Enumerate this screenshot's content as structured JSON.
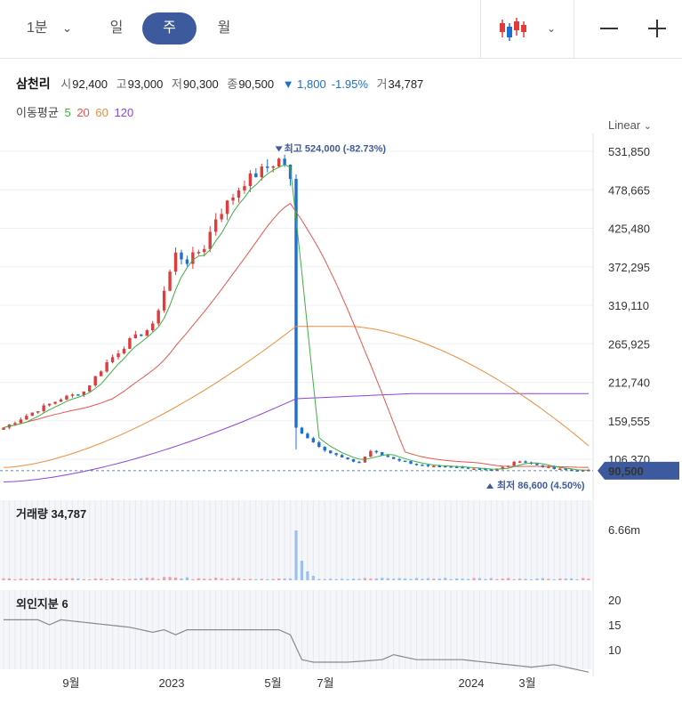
{
  "toolbar": {
    "period_label": "1분",
    "tabs": [
      "일",
      "주",
      "월"
    ],
    "active_tab": "주",
    "chart_style_icon": "candlestick-icon"
  },
  "quote": {
    "name": "삼천리",
    "open_label": "시",
    "open": "92,400",
    "high_label": "고",
    "high": "93,000",
    "low_label": "저",
    "low": "90,300",
    "close_label": "종",
    "close": "90,500",
    "change": "▼ 1,800",
    "change_pct": "-1.95%",
    "volume_label": "거",
    "volume": "34,787"
  },
  "moving_average": {
    "label": "이동평균",
    "periods": [
      {
        "label": "5",
        "color": "#3cb043"
      },
      {
        "label": "20",
        "color": "#e8554e"
      },
      {
        "label": "60",
        "color": "#f08c3a"
      },
      {
        "label": "120",
        "color": "#8e44d9"
      }
    ]
  },
  "scale_mode": "Linear",
  "colors": {
    "up": "#e03c3c",
    "down": "#1e6fd0",
    "price_tag": "#3d5a9e"
  },
  "chart_data": {
    "type": "line",
    "title": "",
    "y_ticks": [
      "531,850",
      "478,665",
      "425,480",
      "372,295",
      "319,110",
      "265,925",
      "212,740",
      "159,555",
      "106,370"
    ],
    "ylim": [
      85000,
      545000
    ],
    "x_ticks": [
      "9월",
      "2023",
      "5월",
      "7월",
      "2024",
      "3월"
    ],
    "current_price_tag": "90,500",
    "annotations": {
      "high": {
        "label": "최고",
        "value": "524,000",
        "pct": "(-82.73%)"
      },
      "low": {
        "label": "최저",
        "value": "86,600",
        "pct": "(4.50%)"
      }
    },
    "ma_end_values": {
      "ma5": 92000,
      "ma20": 94000,
      "ma60": 125000,
      "ma120": 197000
    },
    "candles_approx": [
      {
        "period": "2022-07",
        "close": 150000
      },
      {
        "period": "2022-09",
        "close": 190000
      },
      {
        "period": "2022-11",
        "close": 280000
      },
      {
        "period": "2023-01",
        "close": 390000
      },
      {
        "period": "2023-03",
        "close": 480000
      },
      {
        "period": "2023-04 peak",
        "close": 524000
      },
      {
        "period": "2023-04 crash",
        "close": 150000
      },
      {
        "period": "2023-07",
        "close": 110000
      },
      {
        "period": "2024-01",
        "close": 92000
      },
      {
        "period": "2024-03",
        "close": 105000
      },
      {
        "period": "2024-05",
        "close": 90500
      }
    ],
    "volume": {
      "label": "거래량",
      "value": "34,787",
      "axis_label": "6.66m"
    },
    "foreign_ownership": {
      "label": "외인지분",
      "value": "6",
      "y_ticks": [
        "20",
        "15",
        "10"
      ]
    }
  }
}
